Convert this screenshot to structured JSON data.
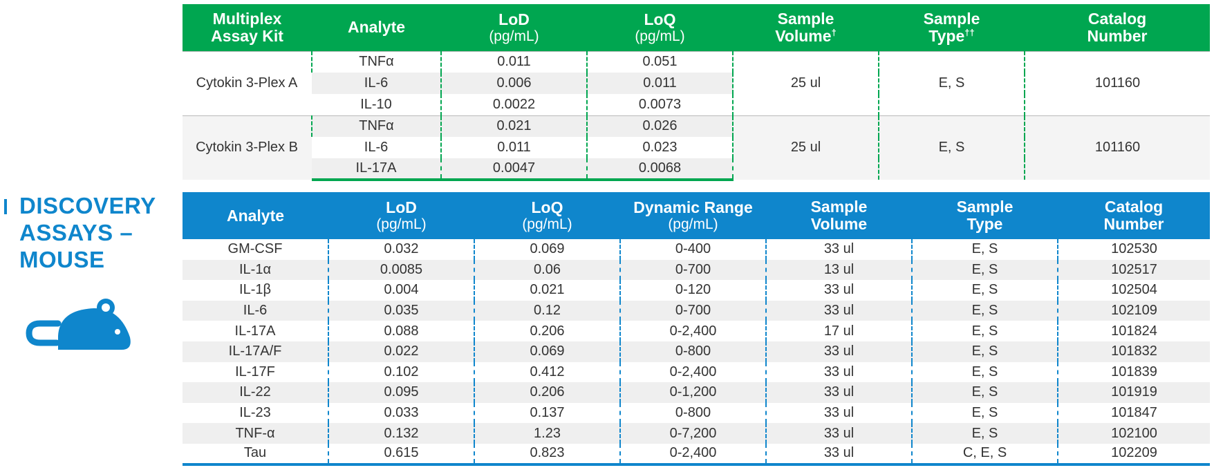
{
  "side": {
    "heading_line1": "DISCOVERY",
    "heading_line2": "ASSAYS –",
    "heading_line3": "MOUSE",
    "icon": "mouse-icon",
    "accent_color": "#0f86cc"
  },
  "multiplex": {
    "header_color": "#00a650",
    "headers": {
      "kit_line1": "Multiplex",
      "kit_line2": "Assay Kit",
      "analyte": "Analyte",
      "lod": "LoD",
      "lod_unit": "(pg/mL)",
      "loq": "LoQ",
      "loq_unit": "(pg/mL)",
      "volume_line1": "Sample",
      "volume_line2": "Volume",
      "volume_mark": "†",
      "type_line1": "Sample",
      "type_line2": "Type",
      "type_mark": "††",
      "catalog_line1": "Catalog",
      "catalog_line2": "Number"
    },
    "groups": [
      {
        "kit": "Cytokin 3-Plex A",
        "volume": "25 ul",
        "type": "E, S",
        "catalog": "101160",
        "rows": [
          {
            "analyte": "TNFα",
            "lod": "0.011",
            "loq": "0.051"
          },
          {
            "analyte": "IL-6",
            "lod": "0.006",
            "loq": "0.011"
          },
          {
            "analyte": "IL-10",
            "lod": "0.0022",
            "loq": "0.0073"
          }
        ]
      },
      {
        "kit": "Cytokin 3-Plex B",
        "volume": "25 ul",
        "type": "E, S",
        "catalog": "101160",
        "rows": [
          {
            "analyte": "TNFα",
            "lod": "0.021",
            "loq": "0.026"
          },
          {
            "analyte": "IL-6",
            "lod": "0.011",
            "loq": "0.023"
          },
          {
            "analyte": "IL-17A",
            "lod": "0.0047",
            "loq": "0.0068"
          }
        ]
      }
    ]
  },
  "discovery": {
    "header_color": "#0f86cc",
    "headers": {
      "analyte": "Analyte",
      "lod": "LoD",
      "lod_unit": "(pg/mL)",
      "loq": "LoQ",
      "loq_unit": "(pg/mL)",
      "range": "Dynamic Range",
      "range_unit": "(pg/mL)",
      "volume_line1": "Sample",
      "volume_line2": "Volume",
      "type_line1": "Sample",
      "type_line2": "Type",
      "catalog_line1": "Catalog",
      "catalog_line2": "Number"
    },
    "rows": [
      {
        "analyte": "GM-CSF",
        "lod": "0.032",
        "loq": "0.069",
        "range": "0-400",
        "volume": "33 ul",
        "type": "E, S",
        "catalog": "102530"
      },
      {
        "analyte": "IL-1α",
        "lod": "0.0085",
        "loq": "0.06",
        "range": "0-700",
        "volume": "13 ul",
        "type": "E, S",
        "catalog": "102517"
      },
      {
        "analyte": "IL-1β",
        "lod": "0.004",
        "loq": "0.021",
        "range": "0-120",
        "volume": "33 ul",
        "type": "E, S",
        "catalog": "102504"
      },
      {
        "analyte": "IL-6",
        "lod": "0.035",
        "loq": "0.12",
        "range": "0-700",
        "volume": "33 ul",
        "type": "E, S",
        "catalog": "102109"
      },
      {
        "analyte": "IL-17A",
        "lod": "0.088",
        "loq": "0.206",
        "range": "0-2,400",
        "volume": "17 ul",
        "type": "E, S",
        "catalog": "101824"
      },
      {
        "analyte": "IL-17A/F",
        "lod": "0.022",
        "loq": "0.069",
        "range": "0-800",
        "volume": "33 ul",
        "type": "E, S",
        "catalog": "101832"
      },
      {
        "analyte": "IL-17F",
        "lod": "0.102",
        "loq": "0.412",
        "range": "0-2,400",
        "volume": "33 ul",
        "type": "E, S",
        "catalog": "101839"
      },
      {
        "analyte": "IL-22",
        "lod": "0.095",
        "loq": "0.206",
        "range": "0-1,200",
        "volume": "33 ul",
        "type": "E, S",
        "catalog": "101919"
      },
      {
        "analyte": "IL-23",
        "lod": "0.033",
        "loq": "0.137",
        "range": "0-800",
        "volume": "33 ul",
        "type": "E, S",
        "catalog": "101847"
      },
      {
        "analyte": "TNF-α",
        "lod": "0.132",
        "loq": "1.23",
        "range": "0-7,200",
        "volume": "33 ul",
        "type": "E, S",
        "catalog": "102100"
      },
      {
        "analyte": "Tau",
        "lod": "0.615",
        "loq": "0.823",
        "range": "0-2,400",
        "volume": "33 ul",
        "type": "C, E, S",
        "catalog": "102209"
      }
    ]
  }
}
